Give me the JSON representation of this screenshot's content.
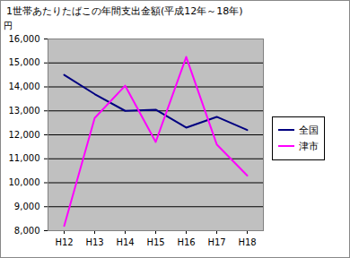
{
  "chart_data": {
    "type": "line",
    "title": "1世帯あたりたばこの年間支出金額(平成12年～18年)",
    "y_label": "円",
    "categories": [
      "H12",
      "H13",
      "H14",
      "H15",
      "H16",
      "H17",
      "H18"
    ],
    "series": [
      {
        "name": "全国",
        "color": "#000080",
        "values": [
          14500,
          13700,
          13000,
          13050,
          12300,
          12750,
          12200
        ]
      },
      {
        "name": "津市",
        "color": "#ff00ff",
        "values": [
          8200,
          12700,
          14050,
          11700,
          15250,
          11600,
          10300
        ]
      }
    ],
    "ylim": [
      8000,
      16000
    ],
    "yticks": [
      {
        "value": 8000,
        "label": "8,000"
      },
      {
        "value": 9000,
        "label": "9,000"
      },
      {
        "value": 10000,
        "label": "10,000"
      },
      {
        "value": 11000,
        "label": "11,000"
      },
      {
        "value": 12000,
        "label": "12,000"
      },
      {
        "value": 13000,
        "label": "13,000"
      },
      {
        "value": 14000,
        "label": "14,000"
      },
      {
        "value": 15000,
        "label": "15,000"
      },
      {
        "value": 16000,
        "label": "16,000"
      }
    ],
    "grid": true,
    "legend": "right"
  }
}
